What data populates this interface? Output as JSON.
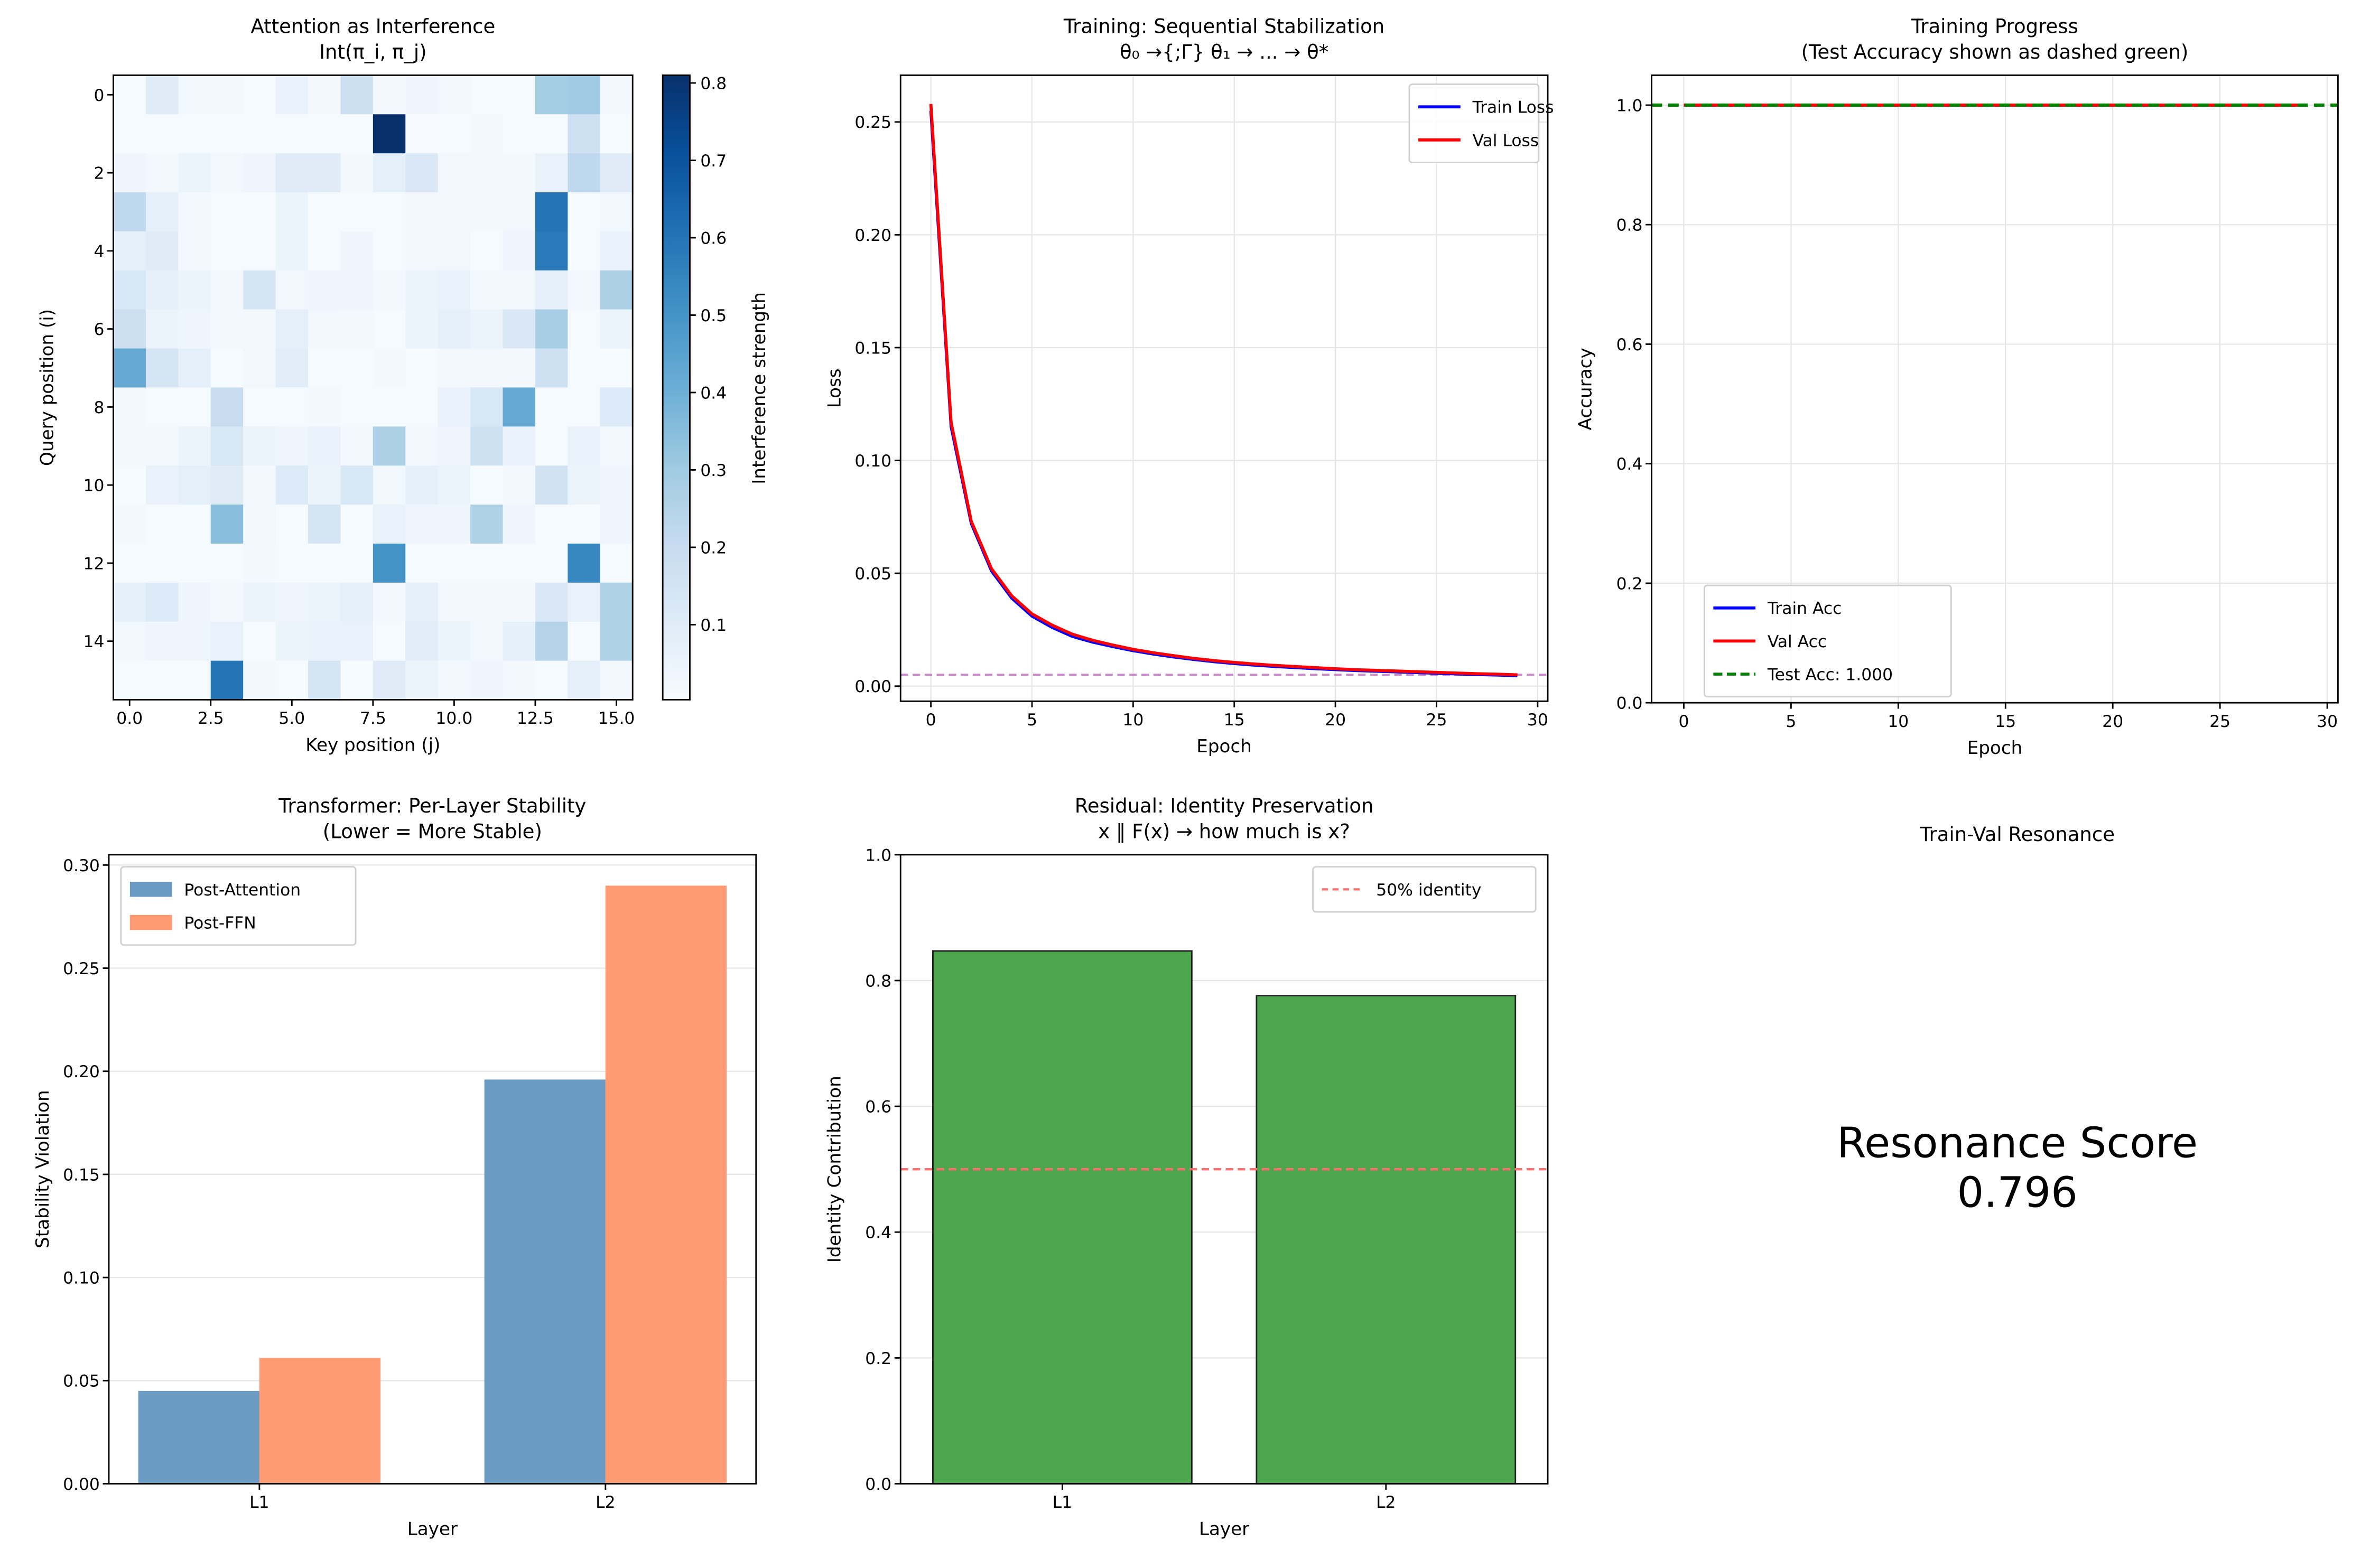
{
  "chart_data": [
    {
      "type": "heatmap",
      "title": "Attention as Interference",
      "subtitle": "Int(π_i, π_j)",
      "xlabel": "Key position (j)",
      "ylabel": "Query position (i)",
      "colorbar_label": "Interference strength",
      "colormap": "Blues",
      "vmin": 0.003,
      "vmax": 0.81,
      "xticks": [
        "0.0",
        "2.5",
        "5.0",
        "7.5",
        "10.0",
        "12.5",
        "15.0"
      ],
      "xtick_values": [
        0,
        2.5,
        5,
        7.5,
        10,
        12.5,
        15
      ],
      "yticks": [
        "0",
        "2",
        "4",
        "6",
        "8",
        "10",
        "12",
        "14"
      ],
      "ytick_values": [
        0,
        2,
        4,
        6,
        8,
        10,
        12,
        14
      ],
      "colorbar_ticks": [
        "0.1",
        "0.2",
        "0.3",
        "0.4",
        "0.5",
        "0.6",
        "0.7",
        "0.8"
      ],
      "colorbar_tick_values": [
        0.1,
        0.2,
        0.3,
        0.4,
        0.5,
        0.6,
        0.7,
        0.8
      ],
      "values": [
        [
          0.01,
          0.1,
          0.03,
          0.02,
          0.01,
          0.06,
          0.02,
          0.18,
          0.02,
          0.04,
          0.02,
          0.01,
          0.01,
          0.29,
          0.3,
          0.02
        ],
        [
          0.01,
          0.01,
          0.01,
          0.01,
          0.01,
          0.01,
          0.01,
          0.01,
          0.81,
          0.0,
          0.01,
          0.02,
          0.01,
          0.01,
          0.17,
          0.01
        ],
        [
          0.04,
          0.02,
          0.05,
          0.03,
          0.04,
          0.1,
          0.1,
          0.02,
          0.08,
          0.12,
          0.03,
          0.03,
          0.02,
          0.06,
          0.22,
          0.1
        ],
        [
          0.22,
          0.08,
          0.02,
          0.01,
          0.01,
          0.05,
          0.01,
          0.01,
          0.01,
          0.02,
          0.02,
          0.02,
          0.03,
          0.6,
          0.01,
          0.03
        ],
        [
          0.08,
          0.1,
          0.02,
          0.01,
          0.01,
          0.05,
          0.01,
          0.04,
          0.01,
          0.03,
          0.03,
          0.01,
          0.04,
          0.58,
          0.01,
          0.06
        ],
        [
          0.13,
          0.07,
          0.05,
          0.02,
          0.14,
          0.03,
          0.04,
          0.04,
          0.02,
          0.05,
          0.06,
          0.02,
          0.03,
          0.08,
          0.02,
          0.27
        ],
        [
          0.18,
          0.05,
          0.04,
          0.02,
          0.02,
          0.08,
          0.03,
          0.02,
          0.01,
          0.05,
          0.08,
          0.05,
          0.12,
          0.28,
          0.01,
          0.05
        ],
        [
          0.42,
          0.14,
          0.08,
          0.01,
          0.03,
          0.09,
          0.01,
          0.01,
          0.02,
          0.01,
          0.02,
          0.03,
          0.02,
          0.17,
          0.01,
          0.01
        ],
        [
          0.02,
          0.01,
          0.01,
          0.2,
          0.01,
          0.01,
          0.02,
          0.01,
          0.01,
          0.01,
          0.06,
          0.13,
          0.42,
          0.01,
          0.01,
          0.11
        ],
        [
          0.03,
          0.02,
          0.05,
          0.13,
          0.05,
          0.04,
          0.06,
          0.02,
          0.27,
          0.03,
          0.04,
          0.17,
          0.06,
          0.01,
          0.06,
          0.02
        ],
        [
          0.01,
          0.06,
          0.08,
          0.1,
          0.02,
          0.11,
          0.05,
          0.13,
          0.03,
          0.07,
          0.05,
          0.01,
          0.02,
          0.16,
          0.05,
          0.04
        ],
        [
          0.02,
          0.01,
          0.01,
          0.35,
          0.03,
          0.01,
          0.14,
          0.01,
          0.06,
          0.04,
          0.04,
          0.26,
          0.04,
          0.01,
          0.01,
          0.04
        ],
        [
          0.01,
          0.01,
          0.01,
          0.01,
          0.02,
          0.01,
          0.01,
          0.01,
          0.5,
          0.01,
          0.01,
          0.01,
          0.01,
          0.01,
          0.54,
          0.01
        ],
        [
          0.07,
          0.11,
          0.04,
          0.02,
          0.05,
          0.04,
          0.05,
          0.08,
          0.02,
          0.08,
          0.03,
          0.02,
          0.02,
          0.12,
          0.06,
          0.26
        ],
        [
          0.03,
          0.04,
          0.04,
          0.06,
          0.01,
          0.05,
          0.06,
          0.06,
          0.01,
          0.09,
          0.05,
          0.02,
          0.07,
          0.25,
          0.01,
          0.26
        ],
        [
          0.01,
          0.01,
          0.01,
          0.6,
          0.02,
          0.01,
          0.14,
          0.01,
          0.1,
          0.05,
          0.03,
          0.04,
          0.02,
          0.01,
          0.08,
          0.02
        ]
      ]
    },
    {
      "type": "line",
      "title": "Training: Sequential Stabilization",
      "subtitle": "θ₀ →{;Γ} θ₁ → ... → θ*",
      "xlabel": "Epoch",
      "ylabel": "Loss",
      "xlim": [
        -1.5,
        30.5
      ],
      "ylim": [
        -0.0067,
        0.2707
      ],
      "grid": true,
      "legend": "top-right",
      "xticks": [
        "0",
        "5",
        "10",
        "15",
        "20",
        "25",
        "30"
      ],
      "xtick_values": [
        0,
        5,
        10,
        15,
        20,
        25,
        30
      ],
      "yticks": [
        "0.00",
        "0.05",
        "0.10",
        "0.15",
        "0.20",
        "0.25"
      ],
      "ytick_values": [
        0,
        0.05,
        0.1,
        0.15,
        0.2,
        0.25
      ],
      "x": [
        0,
        1,
        2,
        3,
        4,
        5,
        6,
        7,
        8,
        9,
        10,
        11,
        12,
        13,
        14,
        15,
        16,
        17,
        18,
        19,
        20,
        21,
        22,
        23,
        24,
        25,
        26,
        27,
        28,
        29
      ],
      "series": [
        {
          "name": "Train Loss",
          "color": "#0000ff",
          "values": [
            0.255,
            0.115,
            0.072,
            0.051,
            0.039,
            0.031,
            0.026,
            0.022,
            0.0195,
            0.0175,
            0.0157,
            0.0142,
            0.0129,
            0.0118,
            0.0108,
            0.01,
            0.0093,
            0.0087,
            0.0082,
            0.0077,
            0.0073,
            0.0069,
            0.0066,
            0.0063,
            0.006,
            0.0057,
            0.0054,
            0.0051,
            0.0049,
            0.0046
          ]
        },
        {
          "name": "Val Loss",
          "color": "#ff0000",
          "values": [
            0.258,
            0.117,
            0.073,
            0.052,
            0.04,
            0.032,
            0.027,
            0.023,
            0.0203,
            0.0182,
            0.0163,
            0.0148,
            0.0135,
            0.0123,
            0.0113,
            0.0105,
            0.0098,
            0.0092,
            0.0087,
            0.0082,
            0.0077,
            0.0073,
            0.007,
            0.0067,
            0.0064,
            0.0061,
            0.0058,
            0.0055,
            0.0053,
            0.005
          ]
        }
      ],
      "reference_line": {
        "y": 0.005,
        "color": "#c070c0",
        "style": "dashed"
      }
    },
    {
      "type": "line",
      "title": "Training Progress",
      "subtitle": "(Test Accuracy shown as dashed green)",
      "xlabel": "Epoch",
      "ylabel": "Accuracy",
      "xlim": [
        -1.5,
        30.5
      ],
      "ylim": [
        0,
        1.05
      ],
      "grid": true,
      "legend": "bottom-left",
      "xticks": [
        "0",
        "5",
        "10",
        "15",
        "20",
        "25",
        "30"
      ],
      "xtick_values": [
        0,
        5,
        10,
        15,
        20,
        25,
        30
      ],
      "yticks": [
        "0.0",
        "0.2",
        "0.4",
        "0.6",
        "0.8",
        "1.0"
      ],
      "ytick_values": [
        0,
        0.2,
        0.4,
        0.6,
        0.8,
        1.0
      ],
      "x": [
        0,
        29
      ],
      "series": [
        {
          "name": "Train Acc",
          "color": "#0000ff",
          "values": [
            1.0,
            1.0
          ]
        },
        {
          "name": "Val Acc",
          "color": "#ff0000",
          "values": [
            1.0,
            1.0
          ]
        }
      ],
      "reference_line": {
        "name": "Test Acc: 1.000",
        "y": 1.0,
        "color": "#008000",
        "style": "dashed"
      }
    },
    {
      "type": "bar",
      "title": "Transformer: Per-Layer Stability",
      "subtitle": "(Lower = More Stable)",
      "xlabel": "Layer",
      "ylabel": "Stability Violation",
      "ylim": [
        0,
        0.305
      ],
      "grid": true,
      "legend": "top-left",
      "categories": [
        "L1",
        "L2"
      ],
      "yticks": [
        "0.00",
        "0.05",
        "0.10",
        "0.15",
        "0.20",
        "0.25",
        "0.30"
      ],
      "ytick_values": [
        0,
        0.05,
        0.1,
        0.15,
        0.2,
        0.25,
        0.3
      ],
      "series": [
        {
          "name": "Post-Attention",
          "color": "#6b9bc3",
          "values": [
            0.045,
            0.196
          ]
        },
        {
          "name": "Post-FFN",
          "color": "#ff9a73",
          "values": [
            0.061,
            0.29
          ]
        }
      ]
    },
    {
      "type": "bar",
      "title": "Residual: Identity Preservation",
      "subtitle": "x ‖ F(x) → how much is x?",
      "xlabel": "Layer",
      "ylabel": "Identity Contribution",
      "ylim": [
        0,
        1.0
      ],
      "grid": true,
      "legend": "top-right",
      "categories": [
        "L1",
        "L2"
      ],
      "yticks": [
        "0.0",
        "0.2",
        "0.4",
        "0.6",
        "0.8",
        "1.0"
      ],
      "ytick_values": [
        0,
        0.2,
        0.4,
        0.6,
        0.8,
        1.0
      ],
      "values": [
        0.847,
        0.776
      ],
      "color": "#4ca64c",
      "reference_line": {
        "name": "50% identity",
        "y": 0.5,
        "color": "#ff7070",
        "style": "dashed"
      }
    },
    {
      "type": "table",
      "title": "Train-Val Resonance",
      "label": "Resonance Score",
      "value": "0.796"
    }
  ]
}
